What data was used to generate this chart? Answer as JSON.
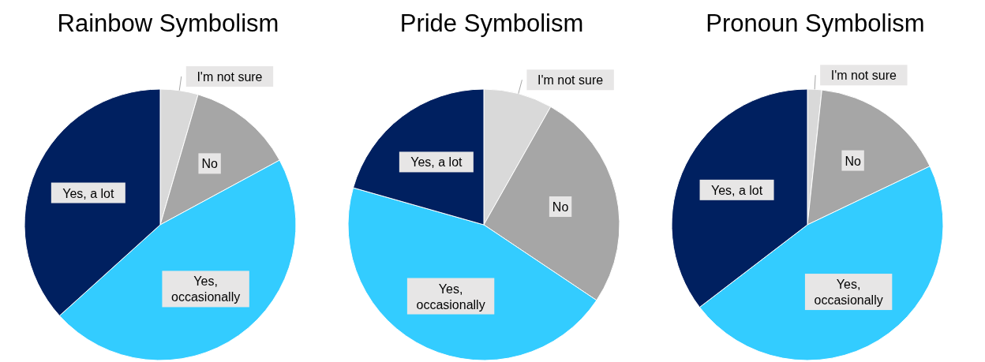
{
  "chart_data": [
    {
      "type": "pie",
      "title": "Rainbow Symbolism",
      "categories": [
        "I'm not sure",
        "No",
        "Yes, occasionally",
        "Yes, a lot"
      ],
      "values": [
        4.5,
        12.6,
        46.2,
        36.7
      ],
      "colors": [
        "#d9d9d9",
        "#a6a6a6",
        "#33ccff",
        "#002060"
      ],
      "legend": false
    },
    {
      "type": "pie",
      "title": "Pride Symbolism",
      "categories": [
        "I'm not sure",
        "No",
        "Yes, occasionally",
        "Yes, a lot"
      ],
      "values": [
        8.2,
        26.2,
        45.0,
        20.6
      ],
      "colors": [
        "#d9d9d9",
        "#a6a6a6",
        "#33ccff",
        "#002060"
      ],
      "legend": false
    },
    {
      "type": "pie",
      "title": "Pronoun Symbolism",
      "categories": [
        "I'm not sure",
        "No",
        "Yes, occasionally",
        "Yes, a lot"
      ],
      "values": [
        1.7,
        16.2,
        46.7,
        35.4
      ],
      "colors": [
        "#d9d9d9",
        "#a6a6a6",
        "#33ccff",
        "#002060"
      ],
      "legend": false
    }
  ]
}
